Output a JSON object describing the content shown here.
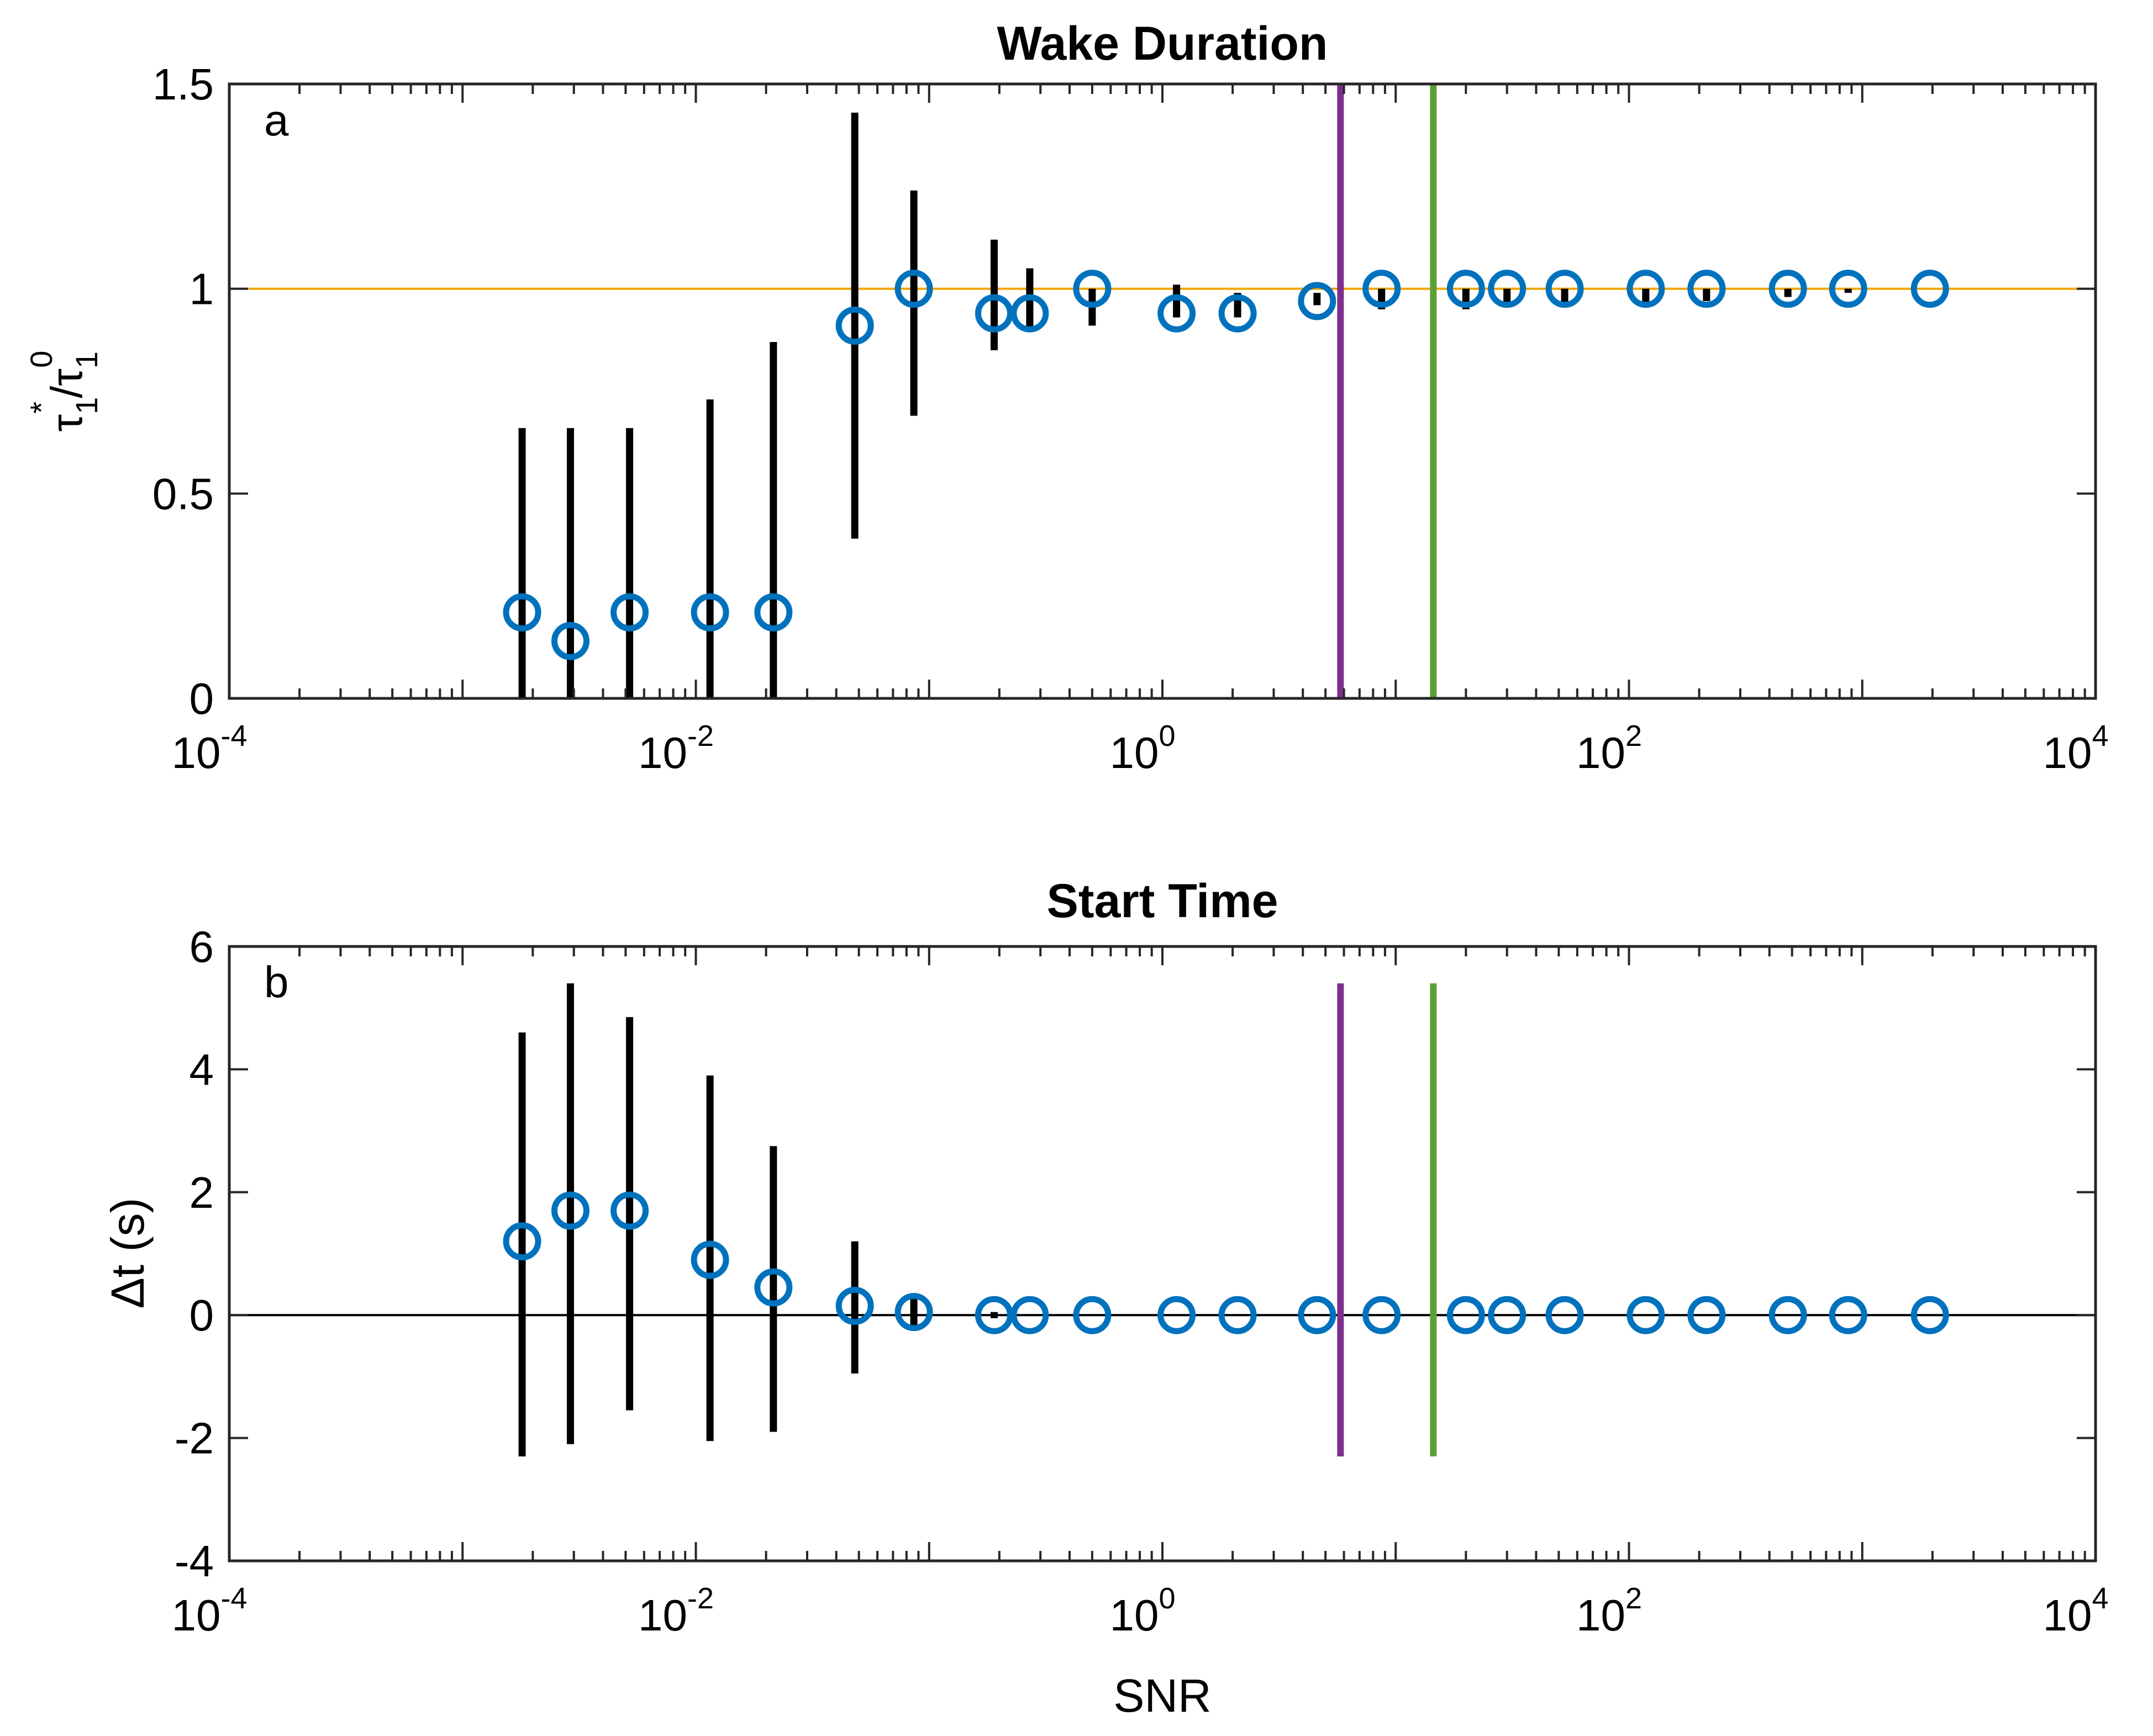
{
  "figure": {
    "xlabel": "SNR",
    "x_scale": "log",
    "grid": false
  },
  "chart_data": [
    {
      "type": "scatter",
      "panel_letter": "a",
      "title": "Wake Duration",
      "xlabel": "",
      "ylabel": "τ1*/τ10",
      "ylabel_parts": {
        "sym": "τ",
        "sub1": "1",
        "sup1": "*",
        "slash": "/",
        "sub2": "1",
        "sup2": "0"
      },
      "x_scale": "log",
      "xlim": [
        0.0001,
        10000
      ],
      "ylim": [
        0,
        1.5
      ],
      "x_ticks": [
        {
          "base": "10",
          "exp": "-4"
        },
        {
          "base": "10",
          "exp": "-2"
        },
        {
          "base": "10",
          "exp": "0"
        },
        {
          "base": "10",
          "exp": "2"
        },
        {
          "base": "10",
          "exp": "4"
        }
      ],
      "y_ticks": [
        "0",
        "0.5",
        "1",
        "1.5"
      ],
      "y_tick_values": [
        0,
        0.5,
        1,
        1.5
      ],
      "reference_line": {
        "y": 1,
        "color": "#F0A500"
      },
      "vertical_lines": [
        {
          "x": 5.8,
          "color": "#7E2F8E",
          "y_range": [
            0,
            1.5
          ]
        },
        {
          "x": 14.5,
          "color": "#5CA032",
          "y_range": [
            0,
            1.5
          ]
        }
      ],
      "marker_color": "#0072BD",
      "errorbar_color": "#000000",
      "points": [
        {
          "x": 0.0018,
          "y": 0.21,
          "lo": 0.0,
          "hi": 0.66
        },
        {
          "x": 0.0029,
          "y": 0.14,
          "lo": 0.0,
          "hi": 0.66
        },
        {
          "x": 0.0052,
          "y": 0.21,
          "lo": 0.0,
          "hi": 0.66
        },
        {
          "x": 0.0115,
          "y": 0.21,
          "lo": 0.0,
          "hi": 0.73
        },
        {
          "x": 0.0215,
          "y": 0.21,
          "lo": 0.0,
          "hi": 0.87
        },
        {
          "x": 0.048,
          "y": 0.91,
          "lo": 0.39,
          "hi": 1.43
        },
        {
          "x": 0.086,
          "y": 1.0,
          "lo": 0.69,
          "hi": 1.24
        },
        {
          "x": 0.19,
          "y": 0.94,
          "lo": 0.85,
          "hi": 1.12
        },
        {
          "x": 0.27,
          "y": 0.94,
          "lo": 0.9,
          "hi": 1.05
        },
        {
          "x": 0.5,
          "y": 1.0,
          "lo": 0.91,
          "hi": 1.0
        },
        {
          "x": 1.15,
          "y": 0.94,
          "lo": 0.93,
          "hi": 1.01
        },
        {
          "x": 2.1,
          "y": 0.94,
          "lo": 0.93,
          "hi": 0.99
        },
        {
          "x": 4.6,
          "y": 0.97,
          "lo": 0.96,
          "hi": 0.99
        },
        {
          "x": 8.7,
          "y": 1.0,
          "lo": 0.95,
          "hi": 1.0
        },
        {
          "x": 20,
          "y": 1.0,
          "lo": 0.95,
          "hi": 1.0
        },
        {
          "x": 30,
          "y": 1.0,
          "lo": 0.96,
          "hi": 1.0
        },
        {
          "x": 53,
          "y": 1.0,
          "lo": 0.96,
          "hi": 1.0
        },
        {
          "x": 118,
          "y": 1.0,
          "lo": 0.96,
          "hi": 1.0
        },
        {
          "x": 215,
          "y": 1.0,
          "lo": 0.97,
          "hi": 1.0
        },
        {
          "x": 480,
          "y": 1.0,
          "lo": 0.98,
          "hi": 1.0
        },
        {
          "x": 870,
          "y": 1.0,
          "lo": 0.99,
          "hi": 1.0
        },
        {
          "x": 1950,
          "y": 1.0,
          "lo": 1.0,
          "hi": 1.0
        }
      ]
    },
    {
      "type": "scatter",
      "panel_letter": "b",
      "title": "Start Time",
      "xlabel": "SNR",
      "ylabel": "Δt (s)",
      "x_scale": "log",
      "xlim": [
        0.0001,
        10000
      ],
      "ylim": [
        -4,
        6
      ],
      "x_ticks": [
        {
          "base": "10",
          "exp": "-4"
        },
        {
          "base": "10",
          "exp": "-2"
        },
        {
          "base": "10",
          "exp": "0"
        },
        {
          "base": "10",
          "exp": "2"
        },
        {
          "base": "10",
          "exp": "4"
        }
      ],
      "y_ticks": [
        "-4",
        "-2",
        "0",
        "2",
        "4",
        "6"
      ],
      "y_tick_values": [
        -4,
        -2,
        0,
        2,
        4,
        6
      ],
      "reference_line": {
        "y": 0,
        "color": "#000000"
      },
      "vertical_lines": [
        {
          "x": 5.8,
          "color": "#7E2F8E",
          "y_range": [
            -2.3,
            5.4
          ]
        },
        {
          "x": 14.5,
          "color": "#5CA032",
          "y_range": [
            -2.3,
            5.4
          ]
        }
      ],
      "marker_color": "#0072BD",
      "errorbar_color": "#000000",
      "points": [
        {
          "x": 0.0018,
          "y": 1.2,
          "lo": -2.3,
          "hi": 4.6
        },
        {
          "x": 0.0029,
          "y": 1.7,
          "lo": -2.1,
          "hi": 5.4
        },
        {
          "x": 0.0052,
          "y": 1.7,
          "lo": -1.55,
          "hi": 4.85
        },
        {
          "x": 0.0115,
          "y": 0.9,
          "lo": -2.05,
          "hi": 3.9
        },
        {
          "x": 0.0215,
          "y": 0.45,
          "lo": -1.9,
          "hi": 2.75
        },
        {
          "x": 0.048,
          "y": 0.15,
          "lo": -0.95,
          "hi": 1.2
        },
        {
          "x": 0.086,
          "y": 0.05,
          "lo": -0.25,
          "hi": 0.35
        },
        {
          "x": 0.19,
          "y": 0.0,
          "lo": -0.05,
          "hi": 0.05
        },
        {
          "x": 0.27,
          "y": 0.0,
          "lo": 0.0,
          "hi": 0.0
        },
        {
          "x": 0.5,
          "y": 0.0,
          "lo": 0.0,
          "hi": 0.0
        },
        {
          "x": 1.15,
          "y": 0.0,
          "lo": 0.0,
          "hi": 0.0
        },
        {
          "x": 2.1,
          "y": 0.0,
          "lo": 0.0,
          "hi": 0.0
        },
        {
          "x": 4.6,
          "y": 0.0,
          "lo": 0.0,
          "hi": 0.0
        },
        {
          "x": 8.7,
          "y": 0.0,
          "lo": 0.0,
          "hi": 0.0
        },
        {
          "x": 20,
          "y": 0.0,
          "lo": 0.0,
          "hi": 0.0
        },
        {
          "x": 30,
          "y": 0.0,
          "lo": 0.0,
          "hi": 0.0
        },
        {
          "x": 53,
          "y": 0.0,
          "lo": 0.0,
          "hi": 0.0
        },
        {
          "x": 118,
          "y": 0.0,
          "lo": 0.0,
          "hi": 0.0
        },
        {
          "x": 215,
          "y": 0.0,
          "lo": 0.0,
          "hi": 0.0
        },
        {
          "x": 480,
          "y": 0.0,
          "lo": 0.0,
          "hi": 0.0
        },
        {
          "x": 870,
          "y": 0.0,
          "lo": 0.0,
          "hi": 0.0
        },
        {
          "x": 1950,
          "y": 0.0,
          "lo": 0.0,
          "hi": 0.0
        }
      ]
    }
  ]
}
